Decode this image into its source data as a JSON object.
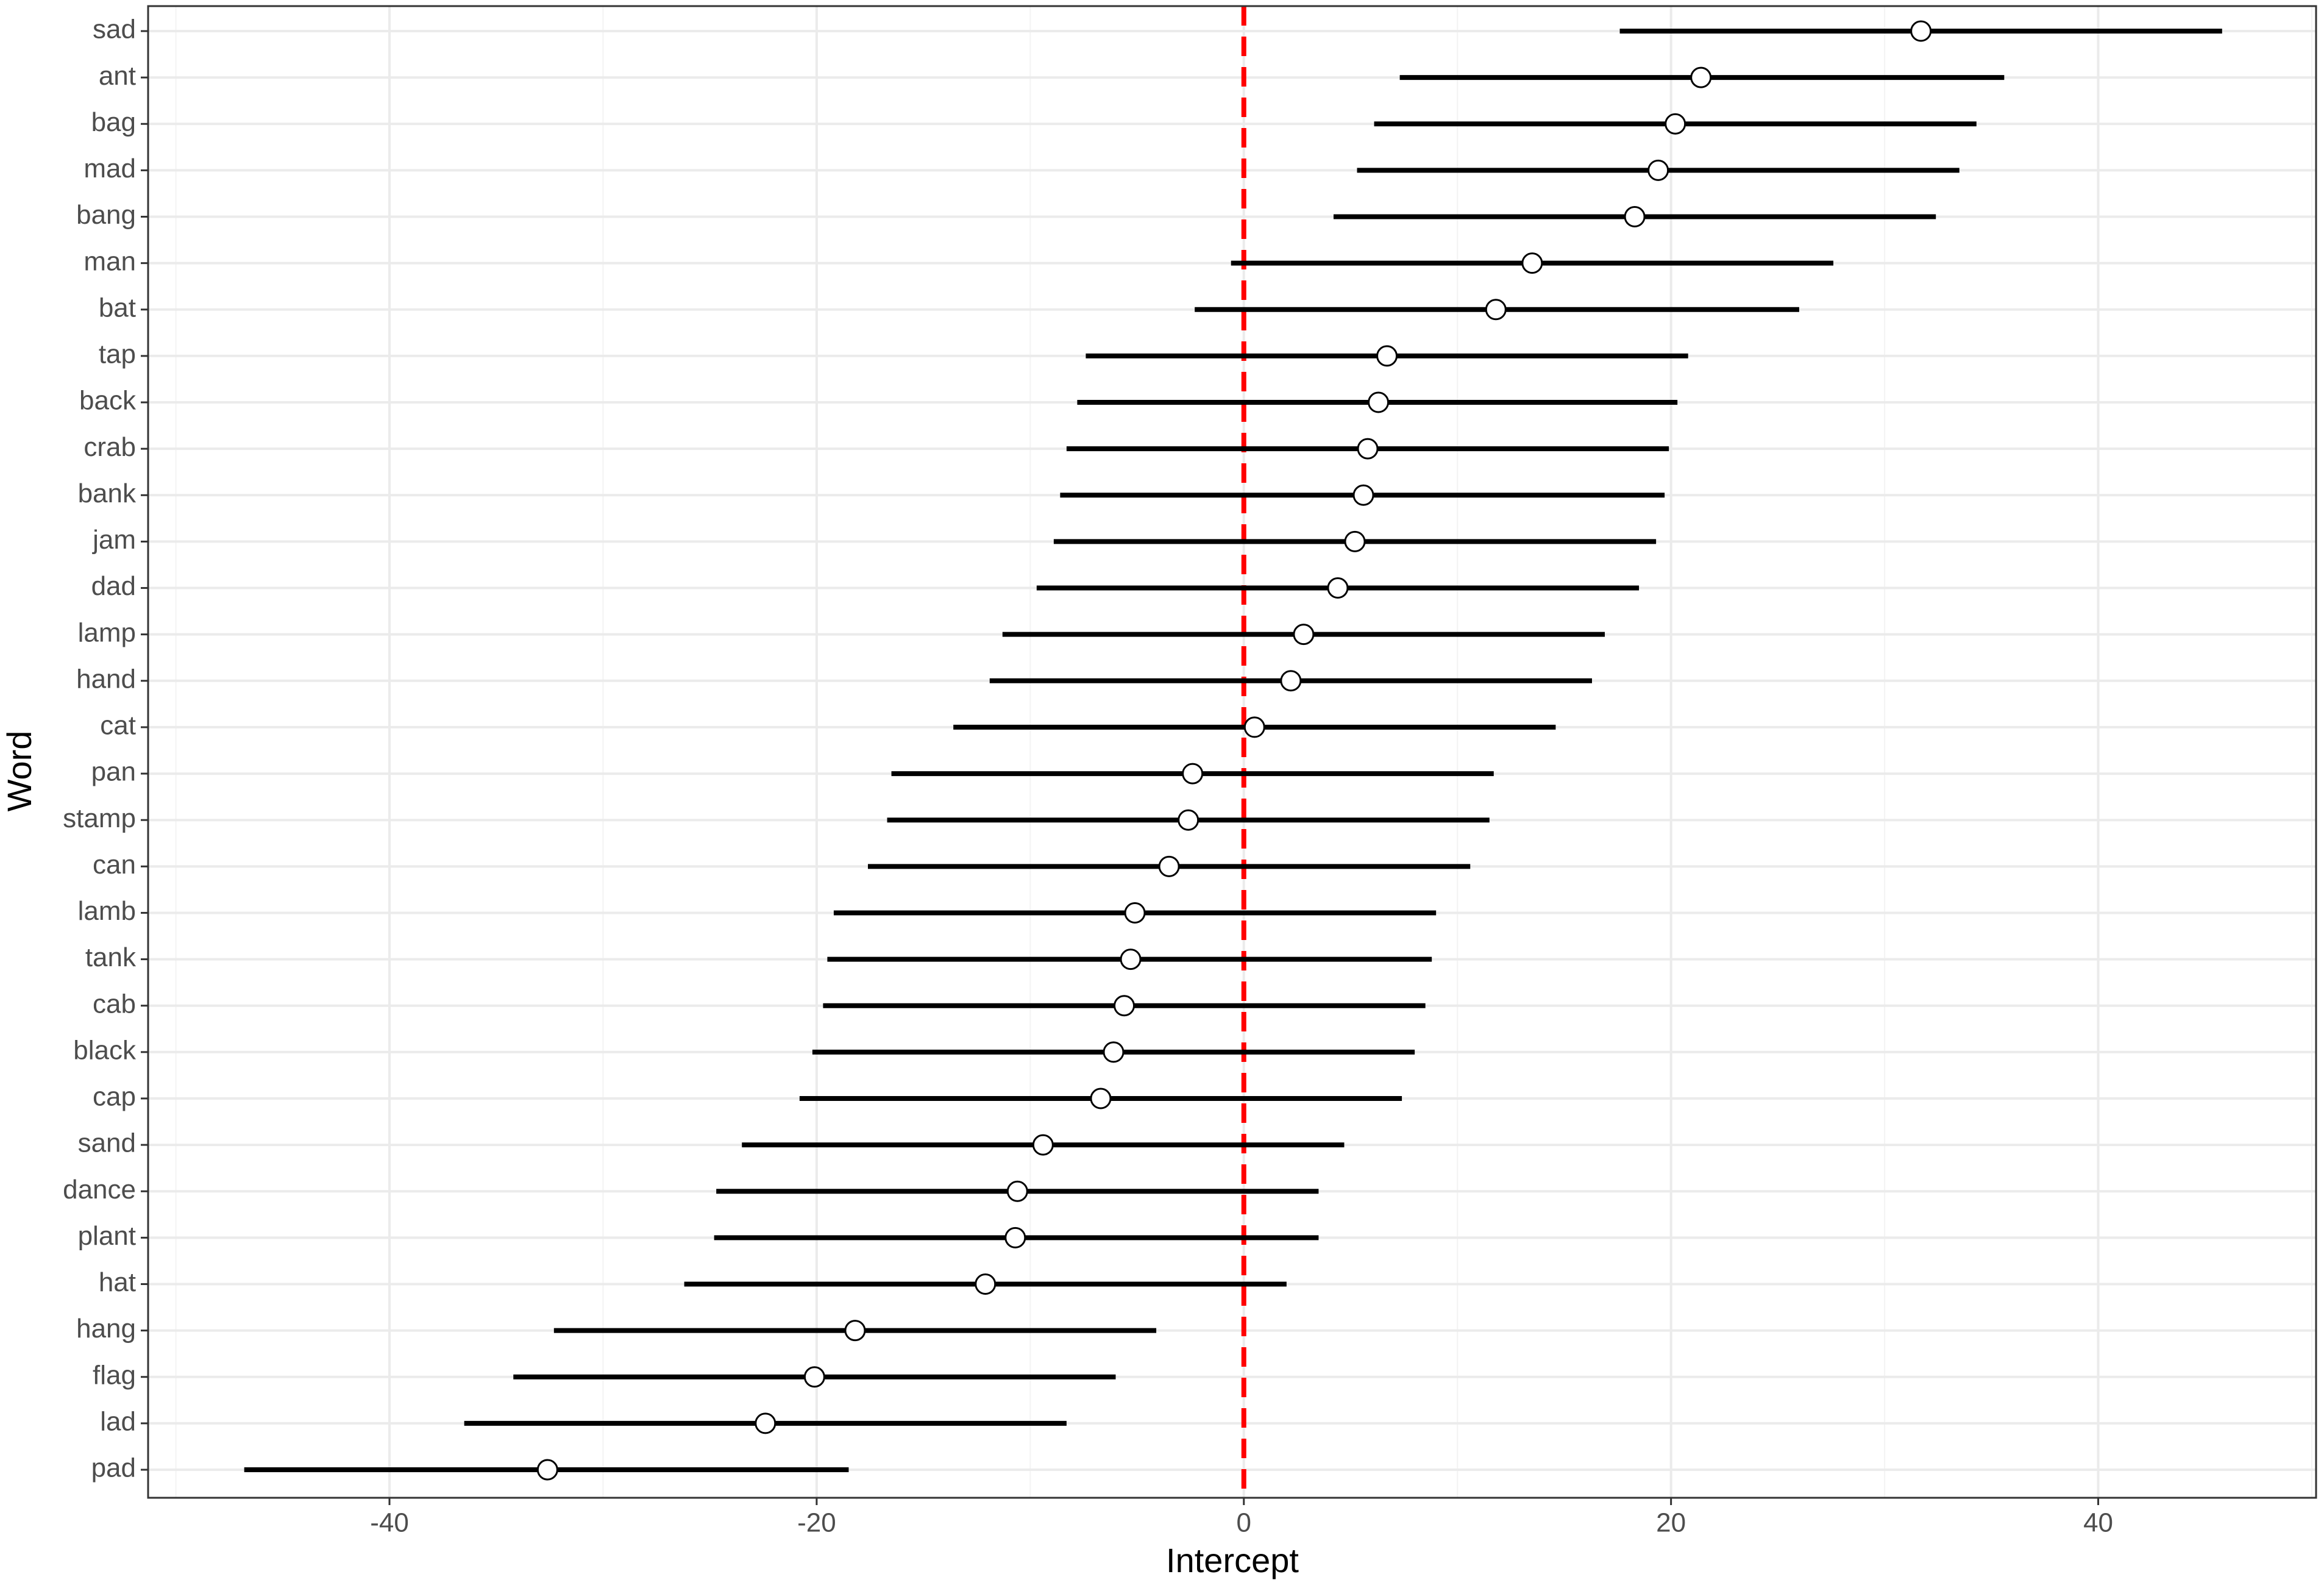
{
  "chart_data": {
    "type": "interval-dot",
    "x_label": "Intercept",
    "y_label": "Word",
    "categories": [
      "sad",
      "ant",
      "bag",
      "mad",
      "bang",
      "man",
      "bat",
      "tap",
      "back",
      "crab",
      "bank",
      "jam",
      "dad",
      "lamp",
      "hand",
      "cat",
      "pan",
      "stamp",
      "can",
      "lamb",
      "tank",
      "cab",
      "black",
      "cap",
      "sand",
      "dance",
      "plant",
      "hat",
      "hang",
      "flag",
      "lad",
      "pad"
    ],
    "values": [
      31.7,
      21.4,
      20.2,
      19.4,
      18.3,
      13.5,
      11.8,
      6.7,
      6.3,
      5.8,
      5.6,
      5.2,
      4.4,
      2.8,
      2.2,
      0.5,
      -2.4,
      -2.6,
      -3.5,
      -5.1,
      -5.3,
      -5.6,
      -6.1,
      -6.7,
      -9.4,
      -10.6,
      -10.7,
      -12.1,
      -18.2,
      -20.1,
      -22.4,
      -32.6
    ],
    "lower": [
      17.6,
      7.3,
      6.1,
      5.3,
      4.2,
      -0.6,
      -2.3,
      -7.4,
      -7.8,
      -8.3,
      -8.6,
      -8.9,
      -9.7,
      -11.3,
      -11.9,
      -13.6,
      -16.5,
      -16.7,
      -17.6,
      -19.2,
      -19.5,
      -19.7,
      -20.2,
      -20.8,
      -23.5,
      -24.7,
      -24.8,
      -26.2,
      -32.3,
      -34.2,
      -36.5,
      -46.8
    ],
    "upper": [
      45.8,
      35.6,
      34.3,
      33.5,
      32.4,
      27.6,
      26.0,
      20.8,
      20.3,
      19.9,
      19.7,
      19.3,
      18.5,
      16.9,
      16.3,
      14.6,
      11.7,
      11.5,
      10.6,
      9.0,
      8.8,
      8.5,
      8.0,
      7.4,
      4.7,
      3.5,
      3.5,
      2.0,
      -4.1,
      -6.0,
      -8.3,
      -18.5
    ],
    "xlim": [
      -51.3,
      50.2
    ],
    "xticks": [
      -40,
      -20,
      0,
      20,
      40
    ],
    "x_minor_grid": [
      -50,
      -30,
      -10,
      10,
      30,
      50
    ],
    "reference_line": {
      "value": 0,
      "color": "#ff0000"
    },
    "color": "#000000",
    "point_fill": "#ffffff",
    "grid": true
  }
}
